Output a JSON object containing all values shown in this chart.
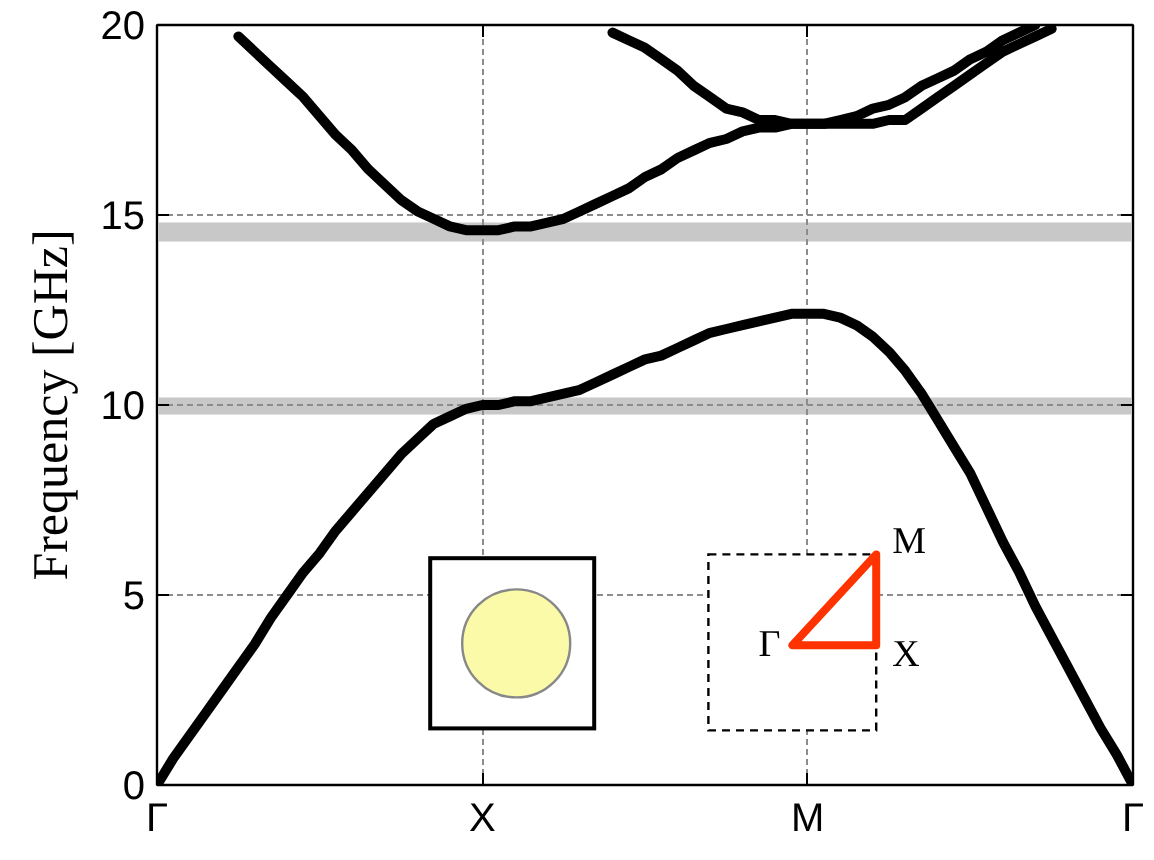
{
  "chart_data": {
    "type": "line",
    "ylabel": "Frequency [GHz]",
    "categories": [
      "Γ",
      null,
      null,
      null,
      null,
      null,
      null,
      null,
      null,
      null,
      null,
      null,
      null,
      null,
      null,
      null,
      null,
      null,
      null,
      null,
      "X",
      null,
      null,
      null,
      null,
      null,
      null,
      null,
      null,
      null,
      null,
      null,
      null,
      null,
      null,
      null,
      null,
      null,
      null,
      null,
      "M",
      null,
      null,
      null,
      null,
      null,
      null,
      null,
      null,
      null,
      null,
      null,
      null,
      null,
      null,
      null,
      null,
      null,
      null,
      null,
      "Γ"
    ],
    "ylim": [
      0,
      20
    ],
    "yticks": [
      0,
      5,
      10,
      15,
      20
    ],
    "grid": true,
    "line_style": "solid",
    "series": [
      {
        "color": "#000000",
        "values": [
          0,
          0.7,
          1.3,
          1.9,
          2.5,
          3.1,
          3.7,
          4.4,
          5.0,
          5.6,
          6.1,
          6.7,
          7.2,
          7.7,
          8.2,
          8.7,
          9.1,
          9.5,
          9.7,
          9.9,
          10.0,
          10.0,
          10.1,
          10.1,
          10.2,
          10.3,
          10.4,
          10.6,
          10.8,
          11.0,
          11.2,
          11.3,
          11.5,
          11.7,
          11.9,
          12.0,
          12.1,
          12.2,
          12.3,
          12.4,
          12.4,
          12.4,
          12.3,
          12.1,
          11.8,
          11.4,
          10.9,
          10.3,
          9.6,
          8.9,
          8.2,
          7.3,
          6.4,
          5.6,
          4.7,
          3.9,
          3.1,
          2.3,
          1.5,
          0.8,
          0
        ]
      },
      {
        "color": "#000000",
        "values": [
          null,
          null,
          null,
          null,
          null,
          19.7,
          19.3,
          18.9,
          18.5,
          18.1,
          17.6,
          17.1,
          16.7,
          16.2,
          15.8,
          15.4,
          15.1,
          14.9,
          14.7,
          14.6,
          14.6,
          14.6,
          14.7,
          14.7,
          14.8,
          14.9,
          15.1,
          15.3,
          15.5,
          15.7,
          16.0,
          16.2,
          16.5,
          16.7,
          16.9,
          17.0,
          17.2,
          17.3,
          17.3,
          17.4,
          17.4,
          17.4,
          17.4,
          17.4,
          17.4,
          17.5,
          17.5,
          17.8,
          18.1,
          18.4,
          18.7,
          19.0,
          19.3,
          19.5,
          19.7,
          19.9,
          null,
          null,
          null,
          null,
          null
        ]
      },
      {
        "color": "#000000",
        "values": [
          null,
          null,
          null,
          null,
          null,
          null,
          null,
          null,
          null,
          null,
          null,
          null,
          null,
          null,
          null,
          null,
          null,
          null,
          null,
          null,
          null,
          null,
          null,
          null,
          null,
          null,
          null,
          null,
          19.8,
          19.6,
          19.4,
          19.1,
          18.8,
          18.4,
          18.1,
          17.8,
          17.7,
          17.5,
          17.5,
          17.4,
          17.4,
          17.4,
          17.5,
          17.6,
          17.8,
          17.9,
          18.1,
          18.4,
          18.6,
          18.8,
          19.1,
          19.3,
          19.6,
          19.8,
          20.0,
          null,
          null,
          null,
          null,
          null,
          null
        ]
      }
    ],
    "bands": [
      {
        "axis": "y",
        "from": 9.75,
        "to": 10.2,
        "color": "#c8c8c8"
      },
      {
        "axis": "y",
        "from": 14.3,
        "to": 14.8,
        "color": "#c8c8c8"
      }
    ],
    "annotations": [
      "Γ",
      "M",
      "X"
    ]
  }
}
